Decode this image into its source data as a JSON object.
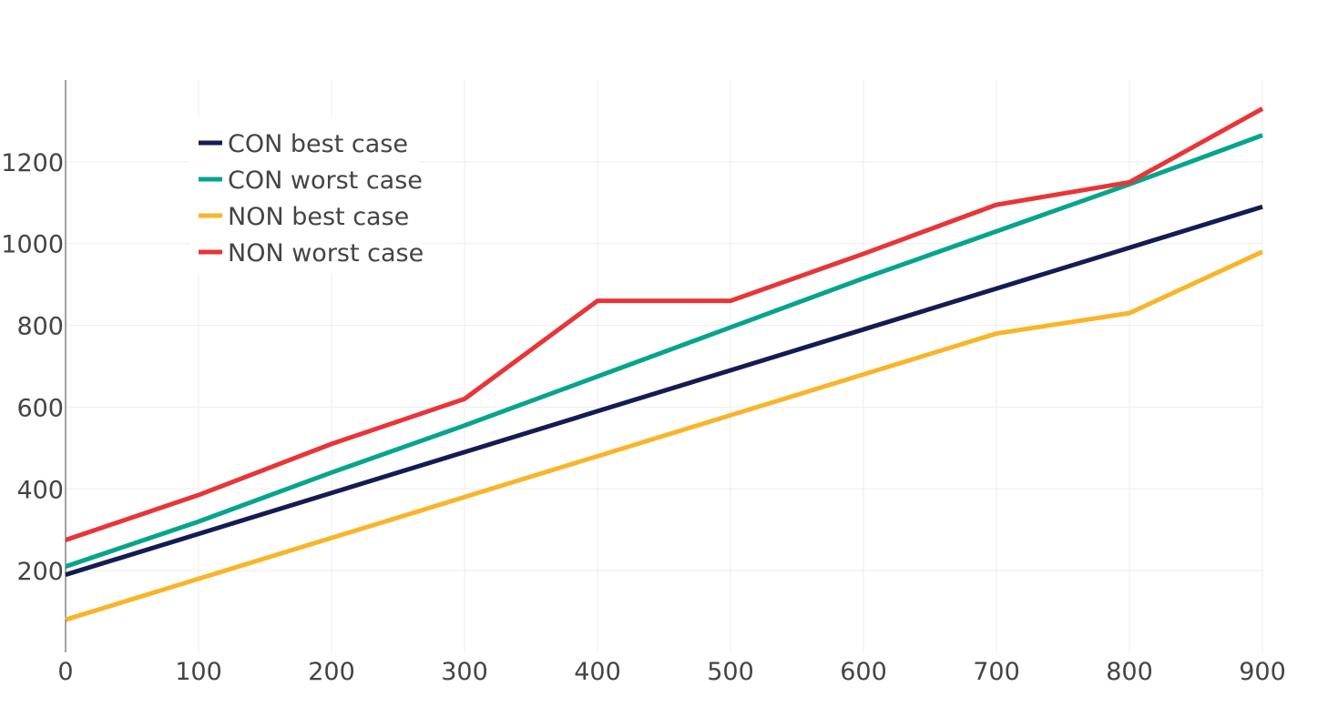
{
  "chart_data": {
    "type": "line",
    "title": "",
    "xlabel": "",
    "ylabel": "",
    "x": [
      0,
      100,
      200,
      300,
      400,
      500,
      600,
      700,
      800,
      900
    ],
    "xlim": [
      0,
      900
    ],
    "ylim": [
      0,
      1400
    ],
    "x_ticks": [
      "0",
      "100",
      "200",
      "300",
      "400",
      "500",
      "600",
      "700",
      "800",
      "900"
    ],
    "x_tick_values": [
      0,
      100,
      200,
      300,
      400,
      500,
      600,
      700,
      800,
      900
    ],
    "y_ticks": [
      "200",
      "400",
      "600",
      "800",
      "1000",
      "1200"
    ],
    "y_tick_values": [
      200,
      400,
      600,
      800,
      1000,
      1200
    ],
    "grid": true,
    "legend_position": "top-left",
    "series": [
      {
        "name": "CON best case",
        "color": "#141c54",
        "values": [
          190,
          290,
          390,
          490,
          590,
          690,
          790,
          890,
          990,
          1090
        ]
      },
      {
        "name": "CON worst case",
        "color": "#05a58d",
        "values": [
          210,
          320,
          440,
          555,
          675,
          795,
          915,
          1030,
          1145,
          1265
        ]
      },
      {
        "name": "NON best case",
        "color": "#f8b52a",
        "values": [
          80,
          180,
          280,
          380,
          480,
          580,
          680,
          780,
          830,
          980
        ]
      },
      {
        "name": "NON worst case",
        "color": "#e83537",
        "values": [
          275,
          385,
          510,
          620,
          860,
          860,
          975,
          1095,
          1150,
          1330
        ]
      }
    ]
  }
}
